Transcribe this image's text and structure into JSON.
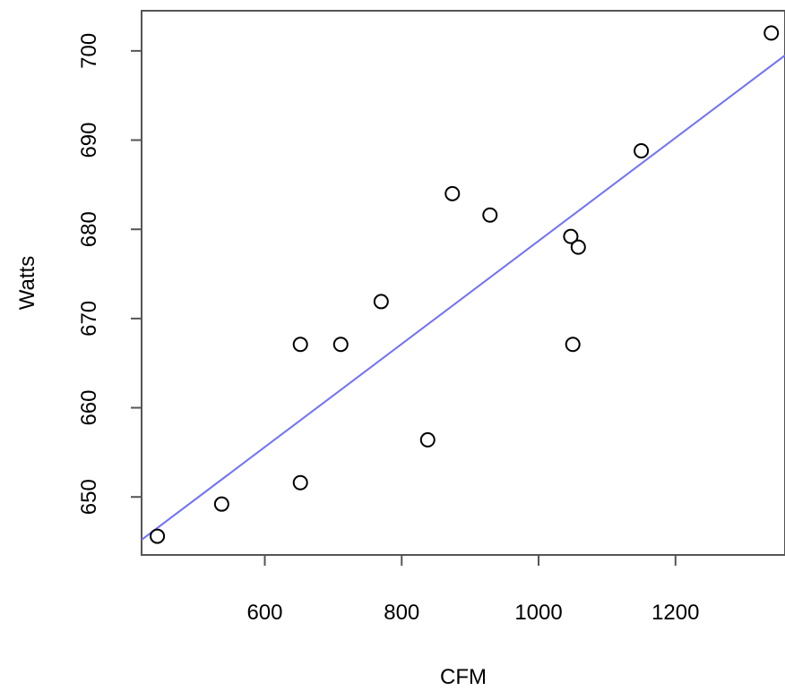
{
  "chart_data": {
    "type": "scatter",
    "xlabel": "CFM",
    "ylabel": "Watts",
    "xlim": [
      420,
      1360
    ],
    "ylim": [
      643.5,
      704.5
    ],
    "x_ticks": [
      600,
      800,
      1000,
      1200
    ],
    "y_ticks": [
      650,
      660,
      670,
      680,
      690,
      700
    ],
    "points": [
      {
        "x": 443,
        "y": 645.6
      },
      {
        "x": 537,
        "y": 649.2
      },
      {
        "x": 652,
        "y": 651.6
      },
      {
        "x": 652,
        "y": 667.1
      },
      {
        "x": 711,
        "y": 667.1
      },
      {
        "x": 770,
        "y": 671.9
      },
      {
        "x": 838,
        "y": 656.4
      },
      {
        "x": 874,
        "y": 684.0
      },
      {
        "x": 929,
        "y": 681.6
      },
      {
        "x": 1047,
        "y": 679.2
      },
      {
        "x": 1058,
        "y": 678.0
      },
      {
        "x": 1050,
        "y": 667.1
      },
      {
        "x": 1150,
        "y": 688.8
      },
      {
        "x": 1340,
        "y": 702.0
      }
    ],
    "fit_line": {
      "x": [
        420,
        1360
      ],
      "y": [
        645.2,
        699.5
      ],
      "color": "#7070ff"
    },
    "point_color": "#000000",
    "grid": false,
    "legend": "none"
  }
}
